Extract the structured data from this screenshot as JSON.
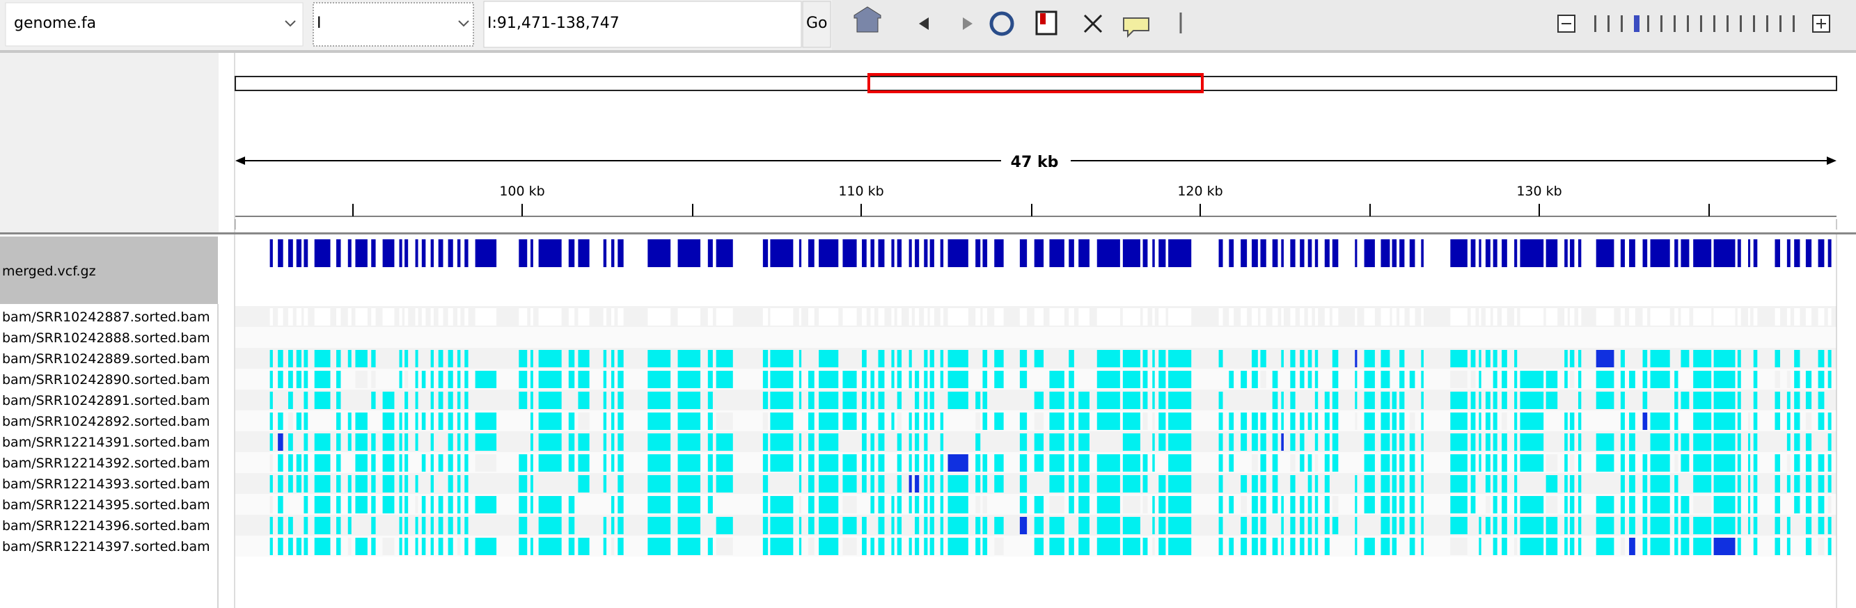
{
  "toolbar": {
    "genome": "genome.fa",
    "chromosome": "I",
    "locus": "I:91,471-138,747",
    "go": "Go"
  },
  "ruler": {
    "span": "47 kb",
    "labels": [
      "100 kb",
      "110 kb",
      "120 kb",
      "130 kb"
    ]
  },
  "tracks": {
    "variant_track": "merged.vcf.gz",
    "samples": [
      "bam/SRR10242887.sorted.bam",
      "bam/SRR10242888.sorted.bam",
      "bam/SRR10242889.sorted.bam",
      "bam/SRR10242890.sorted.bam",
      "bam/SRR10242891.sorted.bam",
      "bam/SRR10242892.sorted.bam",
      "bam/SRR12214391.sorted.bam",
      "bam/SRR12214392.sorted.bam",
      "bam/SRR12214393.sorted.bam",
      "bam/SRR12214395.sorted.bam",
      "bam/SRR12214396.sorted.bam",
      "bam/SRR12214397.sorted.bam"
    ]
  }
}
